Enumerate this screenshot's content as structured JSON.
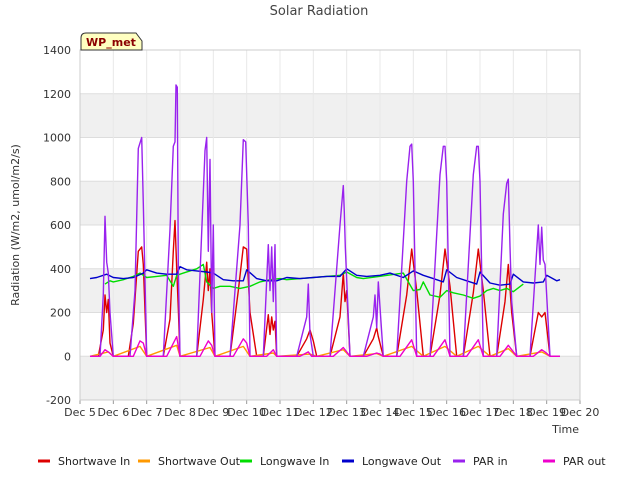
{
  "chart_data": {
    "type": "line",
    "title": "Solar Radiation",
    "xlabel": "Time",
    "ylabel": "Radiation (W/m2, umol/m2/s)",
    "badge": "WP_met",
    "xlim": [
      5,
      20
    ],
    "ylim": [
      -200,
      1400
    ],
    "x_ticks": [
      5,
      6,
      7,
      8,
      9,
      10,
      11,
      12,
      13,
      14,
      15,
      16,
      17,
      18,
      19,
      20
    ],
    "x_tick_labels": [
      "Dec 5",
      "Dec 6",
      "Dec 7",
      "Dec 8",
      "Dec 9",
      "Dec 10",
      "Dec 11",
      "Dec 12",
      "Dec 13",
      "Dec 14",
      "Dec 15",
      "Dec 16",
      "Dec 17",
      "Dec 18",
      "Dec 19",
      "Dec 20"
    ],
    "y_ticks": [
      -200,
      0,
      200,
      400,
      600,
      800,
      1000,
      1200,
      1400
    ],
    "grid": true,
    "legend_position": "bottom",
    "series": [
      {
        "name": "Shortwave In",
        "color": "#dd0000",
        "x": [
          5.3,
          5.55,
          5.7,
          5.75,
          5.8,
          5.85,
          5.9,
          6.0,
          6.45,
          6.6,
          6.75,
          6.85,
          6.9,
          7.0,
          7.5,
          7.7,
          7.8,
          7.85,
          7.9,
          7.95,
          8.0,
          8.5,
          8.7,
          8.8,
          8.85,
          8.9,
          8.95,
          9.05,
          9.5,
          9.75,
          9.9,
          10.0,
          10.1,
          10.3,
          10.5,
          10.65,
          10.7,
          10.75,
          10.8,
          10.85,
          10.9,
          11.5,
          11.8,
          11.9,
          12.0,
          12.1,
          12.5,
          12.8,
          12.9,
          12.95,
          13.0,
          13.1,
          13.5,
          13.8,
          13.9,
          13.95,
          14.1,
          14.5,
          14.8,
          14.95,
          15.1,
          15.3,
          15.5,
          15.8,
          15.95,
          16.1,
          16.3,
          16.5,
          16.8,
          16.95,
          17.1,
          17.3,
          17.5,
          17.75,
          17.85,
          17.95,
          18.1,
          18.5,
          18.75,
          18.85,
          18.95,
          19.1,
          19.4
        ],
        "y": [
          0,
          0,
          120,
          280,
          200,
          260,
          60,
          0,
          0,
          150,
          480,
          500,
          420,
          0,
          0,
          170,
          480,
          620,
          400,
          220,
          0,
          0,
          260,
          430,
          300,
          400,
          200,
          0,
          0,
          300,
          500,
          490,
          200,
          0,
          0,
          190,
          100,
          180,
          120,
          160,
          0,
          0,
          80,
          120,
          70,
          0,
          0,
          180,
          380,
          250,
          300,
          0,
          0,
          80,
          130,
          90,
          0,
          0,
          280,
          490,
          300,
          0,
          0,
          280,
          490,
          320,
          0,
          0,
          290,
          490,
          300,
          0,
          0,
          250,
          420,
          200,
          0,
          0,
          200,
          180,
          200,
          0,
          0
        ]
      },
      {
        "name": "Shortwave Out",
        "color": "#ff9900",
        "x": [
          5.3,
          5.85,
          6.0,
          6.8,
          7.0,
          7.9,
          8.0,
          8.9,
          9.05,
          9.9,
          10.1,
          10.8,
          10.9,
          11.9,
          12.1,
          12.9,
          13.1,
          13.9,
          14.1,
          14.95,
          15.3,
          15.95,
          16.3,
          16.95,
          17.3,
          17.85,
          18.1,
          18.85,
          19.1,
          19.4
        ],
        "y": [
          0,
          20,
          0,
          45,
          0,
          50,
          0,
          40,
          0,
          45,
          0,
          15,
          0,
          10,
          0,
          30,
          0,
          12,
          0,
          45,
          0,
          45,
          0,
          45,
          0,
          35,
          0,
          20,
          0,
          0
        ]
      },
      {
        "name": "Longwave In",
        "color": "#00dd00",
        "x": [
          5.75,
          5.9,
          6.0,
          6.3,
          6.6,
          6.8,
          7.0,
          7.3,
          7.6,
          7.8,
          7.9,
          8.1,
          8.3,
          8.5,
          8.7,
          8.8,
          9.0,
          9.2,
          9.5,
          9.8,
          10.1,
          10.4,
          10.7,
          11.0,
          11.2,
          12.8,
          13.0,
          13.3,
          13.5,
          14.7,
          15.0,
          15.2,
          15.3,
          15.5,
          15.8,
          16.0,
          16.2,
          16.5,
          16.8,
          17.0,
          17.2,
          17.4,
          17.6,
          17.8,
          18.0,
          18.3
        ],
        "y": [
          330,
          345,
          340,
          350,
          365,
          380,
          360,
          365,
          370,
          320,
          370,
          380,
          390,
          400,
          420,
          340,
          310,
          320,
          320,
          310,
          320,
          340,
          350,
          355,
          350,
          370,
          385,
          360,
          355,
          380,
          300,
          305,
          340,
          280,
          270,
          300,
          290,
          280,
          265,
          275,
          300,
          310,
          300,
          310,
          295,
          330
        ]
      },
      {
        "name": "Longwave Out",
        "color": "#0000cc",
        "x": [
          5.3,
          5.5,
          5.8,
          6.0,
          6.3,
          6.6,
          6.9,
          7.0,
          7.3,
          7.6,
          7.9,
          8.0,
          8.2,
          8.5,
          8.8,
          9.0,
          9.3,
          9.6,
          9.9,
          10.0,
          10.3,
          10.6,
          10.9,
          11.2,
          11.6,
          12.0,
          12.4,
          12.8,
          13.0,
          13.3,
          13.6,
          14.0,
          14.3,
          14.7,
          15.0,
          15.3,
          15.6,
          15.9,
          16.0,
          16.3,
          16.6,
          16.9,
          17.0,
          17.3,
          17.6,
          17.9,
          18.0,
          18.3,
          18.6,
          18.9,
          19.0,
          19.3,
          19.4
        ],
        "y": [
          355,
          360,
          375,
          360,
          355,
          360,
          380,
          395,
          380,
          375,
          375,
          410,
          395,
          390,
          385,
          380,
          350,
          345,
          345,
          395,
          355,
          345,
          345,
          360,
          355,
          360,
          365,
          365,
          400,
          370,
          365,
          370,
          380,
          360,
          390,
          370,
          355,
          340,
          395,
          360,
          345,
          330,
          385,
          335,
          325,
          330,
          375,
          340,
          335,
          340,
          370,
          345,
          350
        ]
      },
      {
        "name": "PAR in",
        "color": "#9922ee",
        "x": [
          5.3,
          5.6,
          5.7,
          5.75,
          5.8,
          5.85,
          5.9,
          6.0,
          6.5,
          6.65,
          6.75,
          6.85,
          6.9,
          7.0,
          7.5,
          7.7,
          7.8,
          7.85,
          7.88,
          7.92,
          7.95,
          8.0,
          8.5,
          8.75,
          8.8,
          8.85,
          8.9,
          8.95,
          9.0,
          9.05,
          9.5,
          9.8,
          9.9,
          9.97,
          10.05,
          10.1,
          10.5,
          10.65,
          10.7,
          10.75,
          10.8,
          10.85,
          10.9,
          11.5,
          11.8,
          11.85,
          11.9,
          12.0,
          12.5,
          12.8,
          12.9,
          12.93,
          12.96,
          13.0,
          13.1,
          13.5,
          13.8,
          13.85,
          13.9,
          13.95,
          14.1,
          14.5,
          14.8,
          14.9,
          14.95,
          15.0,
          15.1,
          15.3,
          15.5,
          15.8,
          15.9,
          15.95,
          16.0,
          16.1,
          16.3,
          16.5,
          16.8,
          16.9,
          16.95,
          17.0,
          17.1,
          17.3,
          17.5,
          17.7,
          17.8,
          17.85,
          17.9,
          17.95,
          18.1,
          18.5,
          18.75,
          18.8,
          18.85,
          18.9,
          18.95,
          19.1,
          19.4
        ],
        "y": [
          0,
          0,
          280,
          640,
          430,
          380,
          200,
          0,
          0,
          300,
          950,
          1000,
          700,
          0,
          0,
          580,
          960,
          980,
          1240,
          1230,
          400,
          0,
          0,
          940,
          1000,
          480,
          900,
          200,
          600,
          0,
          0,
          600,
          990,
          980,
          600,
          0,
          0,
          510,
          300,
          500,
          250,
          510,
          0,
          0,
          180,
          330,
          100,
          0,
          0,
          600,
          780,
          660,
          500,
          350,
          0,
          0,
          180,
          280,
          130,
          340,
          0,
          0,
          800,
          960,
          970,
          800,
          0,
          0,
          0,
          830,
          960,
          960,
          800,
          0,
          0,
          0,
          830,
          960,
          960,
          800,
          0,
          0,
          0,
          650,
          790,
          810,
          500,
          250,
          0,
          0,
          600,
          420,
          590,
          440,
          420,
          0,
          0
        ]
      },
      {
        "name": "PAR out",
        "color": "#ee00cc",
        "x": [
          5.3,
          5.6,
          5.75,
          5.85,
          6.0,
          6.6,
          6.8,
          6.9,
          7.0,
          7.6,
          7.9,
          8.0,
          8.6,
          8.85,
          8.95,
          9.05,
          9.6,
          9.9,
          10.0,
          10.1,
          10.6,
          10.8,
          10.9,
          11.6,
          11.85,
          11.95,
          12.6,
          12.9,
          13.0,
          13.1,
          13.6,
          13.9,
          14.0,
          14.1,
          14.6,
          14.95,
          15.1,
          15.6,
          15.95,
          16.1,
          16.6,
          16.95,
          17.1,
          17.6,
          17.85,
          17.95,
          18.1,
          18.6,
          18.85,
          18.95,
          19.1,
          19.4
        ],
        "y": [
          0,
          0,
          30,
          20,
          0,
          0,
          70,
          60,
          0,
          0,
          90,
          0,
          0,
          70,
          50,
          0,
          0,
          80,
          60,
          0,
          0,
          30,
          0,
          0,
          20,
          0,
          0,
          40,
          20,
          0,
          0,
          15,
          10,
          0,
          0,
          75,
          0,
          0,
          75,
          0,
          0,
          75,
          0,
          0,
          50,
          30,
          0,
          0,
          30,
          20,
          0,
          0
        ]
      }
    ]
  }
}
